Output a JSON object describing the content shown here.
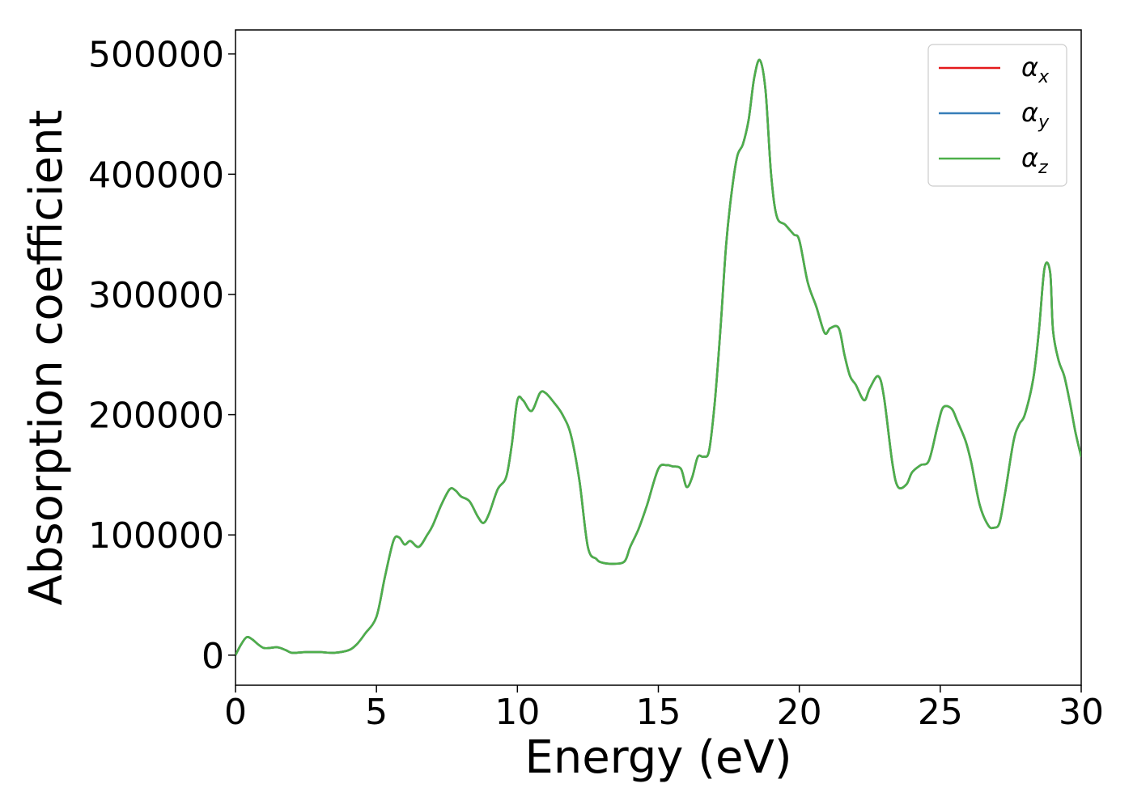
{
  "chart_data": {
    "type": "line",
    "xlabel": "Energy (eV)",
    "ylabel": "Absorption coefficient",
    "xlim": [
      0,
      30
    ],
    "ylim": [
      -25000,
      520000
    ],
    "xticks": [
      0,
      5,
      10,
      15,
      20,
      25,
      30
    ],
    "xtick_labels": [
      "0",
      "5",
      "10",
      "15",
      "20",
      "25",
      "30"
    ],
    "yticks": [
      0,
      100000,
      200000,
      300000,
      400000,
      500000
    ],
    "ytick_labels": [
      "0",
      "100000",
      "200000",
      "300000",
      "400000",
      "500000"
    ],
    "grid": false,
    "legend_position": "top-right",
    "series": [
      {
        "name": "α",
        "sub": "x",
        "color": "#e41a1c"
      },
      {
        "name": "α",
        "sub": "y",
        "color": "#377eb8"
      },
      {
        "name": "α",
        "sub": "z",
        "color": "#4daf4a"
      }
    ],
    "x": [
      0,
      0.2,
      0.4,
      0.6,
      0.8,
      1.0,
      1.2,
      1.5,
      1.8,
      2.0,
      2.5,
      3.0,
      3.5,
      4.0,
      4.3,
      4.6,
      5.0,
      5.3,
      5.6,
      5.8,
      6.0,
      6.2,
      6.5,
      6.8,
      7.0,
      7.3,
      7.6,
      7.8,
      8.0,
      8.3,
      8.6,
      8.8,
      9.0,
      9.3,
      9.6,
      9.8,
      10.0,
      10.2,
      10.5,
      10.8,
      11.0,
      11.3,
      11.6,
      11.9,
      12.2,
      12.5,
      12.8,
      13.0,
      13.4,
      13.8,
      14.0,
      14.3,
      14.6,
      15.0,
      15.3,
      15.5,
      15.8,
      16.0,
      16.2,
      16.4,
      16.6,
      16.8,
      17.0,
      17.2,
      17.4,
      17.6,
      17.8,
      18.0,
      18.2,
      18.4,
      18.6,
      18.8,
      19.0,
      19.2,
      19.5,
      19.8,
      20.0,
      20.3,
      20.6,
      20.9,
      21.1,
      21.4,
      21.6,
      21.8,
      22.0,
      22.3,
      22.5,
      22.8,
      23.0,
      23.3,
      23.5,
      23.8,
      24.0,
      24.3,
      24.6,
      24.9,
      25.1,
      25.4,
      25.6,
      25.9,
      26.1,
      26.4,
      26.7,
      26.9,
      27.1,
      27.3,
      27.6,
      27.8,
      28.0,
      28.3,
      28.5,
      28.7,
      28.9,
      29.0,
      29.2,
      29.4,
      29.6,
      29.8,
      30.0
    ],
    "y": [
      0,
      9000,
      15000,
      13000,
      9000,
      6000,
      6000,
      6500,
      4000,
      2000,
      2500,
      2500,
      2000,
      4000,
      9000,
      18000,
      32000,
      65000,
      95000,
      98000,
      92000,
      95000,
      90000,
      100000,
      108000,
      125000,
      138000,
      137000,
      132000,
      128000,
      115000,
      110000,
      118000,
      138000,
      148000,
      175000,
      212000,
      212000,
      203000,
      218000,
      218000,
      210000,
      200000,
      183000,
      145000,
      90000,
      80000,
      77000,
      76000,
      78000,
      90000,
      105000,
      125000,
      155000,
      158000,
      157000,
      155000,
      140000,
      148000,
      165000,
      165000,
      170000,
      210000,
      270000,
      340000,
      385000,
      415000,
      425000,
      445000,
      480000,
      495000,
      470000,
      400000,
      365000,
      358000,
      350000,
      345000,
      310000,
      290000,
      268000,
      272000,
      272000,
      250000,
      232000,
      225000,
      212000,
      222000,
      232000,
      215000,
      160000,
      140000,
      142000,
      152000,
      158000,
      162000,
      190000,
      206000,
      205000,
      195000,
      178000,
      160000,
      125000,
      108000,
      106000,
      110000,
      135000,
      178000,
      192000,
      200000,
      230000,
      270000,
      322000,
      318000,
      270000,
      245000,
      232000,
      210000,
      185000,
      165000
    ]
  }
}
